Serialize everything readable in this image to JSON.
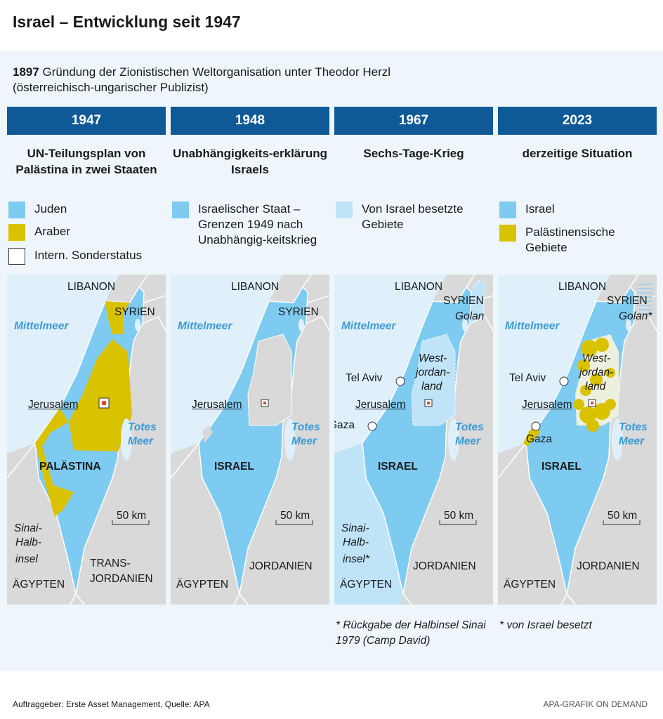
{
  "title": "Israel – Entwicklung seit 1947",
  "intro": {
    "year": "1897",
    "text": " Gründung der Zionistischen Weltorganisation unter Theodor Herzl (österreichisch-ungarischer Publizist)"
  },
  "colors": {
    "header": "#0f5a96",
    "israel": "#7ecbf2",
    "arab": "#d9c200",
    "occupied": "#bfe3f7",
    "land": "#d9d9d9",
    "sea": "#dff0fa"
  },
  "columns": [
    {
      "year": "1947",
      "subtitle": "UN-Teilungsplan von Palästina in zwei Staaten",
      "legend": [
        {
          "label": "Juden",
          "color": "#7ecbf2"
        },
        {
          "label": "Araber",
          "color": "#d9c200"
        },
        {
          "label": "Intern. Sonderstatus",
          "color": "#ffffff"
        }
      ],
      "labels": {
        "libanon": "LIBANON",
        "syrien": "SYRIEN",
        "mittelmeer": "Mittelmeer",
        "jerusalem": "Jerusalem",
        "totes": "Totes",
        "meer": "Meer",
        "country": "PALÄSTINA",
        "scale": "50 km",
        "sinai1": "Sinai-",
        "sinai2": "Halb-",
        "sinai3": "insel",
        "aegypten": "ÄGYPTEN",
        "jord1": "TRANS-",
        "jord2": "JORDANIEN"
      }
    },
    {
      "year": "1948",
      "subtitle": "Unabhängigkeits-erklärung Israels",
      "legend": [
        {
          "label": "Israelischer Staat – Grenzen 1949 nach Unabhängig-keitskrieg",
          "color": "#7ecbf2"
        }
      ],
      "labels": {
        "libanon": "LIBANON",
        "syrien": "SYRIEN",
        "mittelmeer": "Mittelmeer",
        "jerusalem": "Jerusalem",
        "totes": "Totes",
        "meer": "Meer",
        "country": "ISRAEL",
        "scale": "50 km",
        "aegypten": "ÄGYPTEN",
        "jord2": "JORDANIEN"
      }
    },
    {
      "year": "1967",
      "subtitle": "Sechs-Tage-Krieg",
      "legend": [
        {
          "label": "Von Israel besetzte Gebiete",
          "color": "#bfe3f7"
        }
      ],
      "labels": {
        "libanon": "LIBANON",
        "syrien": "SYRIEN",
        "golan": "Golan",
        "mittelmeer": "Mittelmeer",
        "telaviv": "Tel Aviv",
        "west1": "West-",
        "west2": "jordan-",
        "west3": "land",
        "jerusalem": "Jerusalem",
        "gaza": "Gaza",
        "totes": "Totes",
        "meer": "Meer",
        "country": "ISRAEL",
        "scale": "50 km",
        "sinai1": "Sinai-",
        "sinai2": "Halb-",
        "sinai3": "insel*",
        "aegypten": "ÄGYPTEN",
        "jord2": "JORDANIEN"
      },
      "note": "* Rückgabe der Halbinsel Sinai 1979 (Camp David)"
    },
    {
      "year": "2023",
      "subtitle": "derzeitige Situation",
      "legend": [
        {
          "label": "Israel",
          "color": "#7ecbf2"
        },
        {
          "label": "Palästinensische Gebiete",
          "color": "#d9c200"
        }
      ],
      "labels": {
        "libanon": "LIBANON",
        "syrien": "SYRIEN",
        "golan": "Golan*",
        "mittelmeer": "Mittelmeer",
        "telaviv": "Tel Aviv",
        "west1": "West-",
        "west2": "jordan-",
        "west3": "land",
        "jerusalem": "Jerusalem",
        "gaza": "Gaza",
        "totes": "Totes",
        "meer": "Meer",
        "country": "ISRAEL",
        "scale": "50 km",
        "aegypten": "ÄGYPTEN",
        "jord2": "JORDANIEN"
      },
      "note": "* von Israel besetzt"
    }
  ],
  "footer": {
    "source": "Auftraggeber: Erste Asset Management, Quelle: APA",
    "credit": "APA-GRAFIK ON DEMAND"
  }
}
